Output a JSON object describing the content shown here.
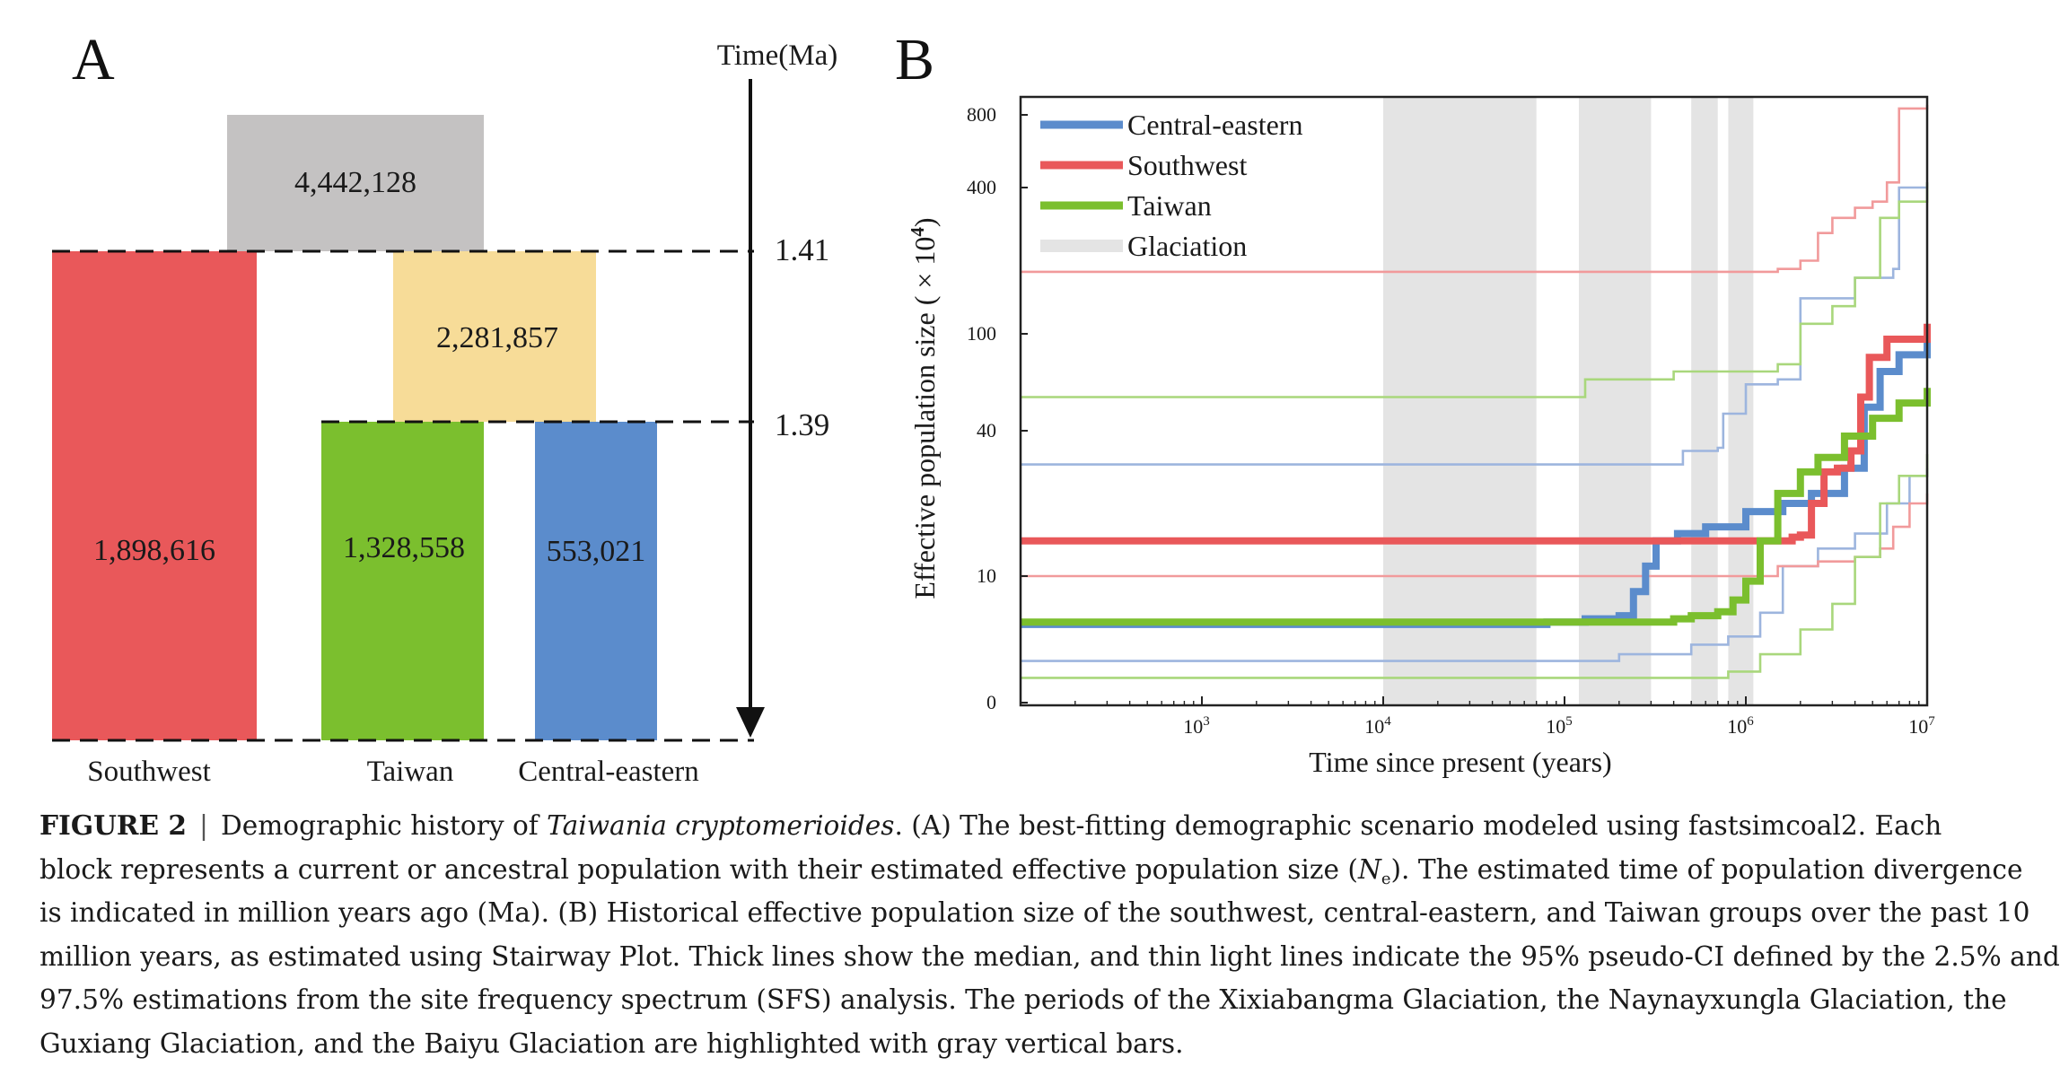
{
  "panel_a": {
    "label": "A",
    "time_label": "Time(Ma)",
    "time_ticks": [
      "1.41",
      "1.39"
    ],
    "blocks": [
      {
        "id": "ancestral-root",
        "value": "4,442,128",
        "color": "#c4c2c2"
      },
      {
        "id": "ancestral-taiwan-ce",
        "value": "2,281,857",
        "color": "#f7dc98"
      },
      {
        "id": "southwest",
        "value": "1,898,616",
        "color": "#e9585a"
      },
      {
        "id": "taiwan",
        "value": "1,328,558",
        "color": "#7bbf2e"
      },
      {
        "id": "central-eastern",
        "value": "553,021",
        "color": "#5b8ccc"
      }
    ],
    "population_labels": [
      "Southwest",
      "Taiwan",
      "Central-eastern"
    ]
  },
  "panel_b": {
    "label": "B",
    "x_tick_base": "10",
    "x_tick_exponents": [
      "3",
      "4",
      "5",
      "6",
      "7"
    ],
    "y_tick_labels": [
      "800",
      "400",
      "100",
      "40",
      "10",
      "0"
    ],
    "y_label_prefix": "Effective population size ( × 10",
    "y_label_exp": "4",
    "y_label_suffix": ")",
    "x_label": "Time since present (years)"
  },
  "chart_data": {
    "type": "line",
    "x_scale": "log",
    "xlim": [
      100,
      10000000
    ],
    "xlabel": "Time since present (years)",
    "ylabel": "Effective population size ( × 10^4)",
    "y_scale": "log-like",
    "y_ticks": [
      0,
      10,
      40,
      100,
      400,
      800
    ],
    "legend": [
      "Central-eastern",
      "Southwest",
      "Taiwan",
      "Glaciation"
    ],
    "legend_position": "top-left",
    "glaciations": [
      [
        10000,
        70000
      ],
      [
        120000,
        300000
      ],
      [
        500000,
        700000
      ],
      [
        800000,
        1100000
      ]
    ],
    "colors": {
      "Central-eastern": "#5b8ccc",
      "Southwest": "#e9585a",
      "Taiwan": "#7bbf2e",
      "Glaciation": "#e4e4e4"
    },
    "series": [
      {
        "name": "Central-eastern",
        "role": "median",
        "points": [
          [
            100,
            3.4
          ],
          [
            70000,
            3.4
          ],
          [
            80000,
            3.6
          ],
          [
            130000,
            3.9
          ],
          [
            200000,
            4.2
          ],
          [
            240000,
            7.2
          ],
          [
            280000,
            11
          ],
          [
            320000,
            14
          ],
          [
            420000,
            15
          ],
          [
            600000,
            16
          ],
          [
            1000000,
            18.5
          ],
          [
            1600000,
            20
          ],
          [
            2300000,
            22
          ],
          [
            3500000,
            28
          ],
          [
            4500000,
            50
          ],
          [
            5500000,
            70
          ],
          [
            7000000,
            82
          ],
          [
            10000000,
            95
          ]
        ]
      },
      {
        "name": "Central-eastern",
        "role": "ci-upper",
        "points": [
          [
            100,
            29
          ],
          [
            400000,
            29
          ],
          [
            450000,
            33
          ],
          [
            700000,
            34
          ],
          [
            750000,
            47
          ],
          [
            1000000,
            62
          ],
          [
            1500000,
            65
          ],
          [
            2000000,
            140
          ],
          [
            4000000,
            170
          ],
          [
            6500000,
            185
          ],
          [
            7000000,
            400
          ],
          [
            10000000,
            420
          ]
        ]
      },
      {
        "name": "Central-eastern",
        "role": "ci-lower",
        "points": [
          [
            100,
            1.2
          ],
          [
            100000,
            1.2
          ],
          [
            200000,
            1.5
          ],
          [
            500000,
            2.0
          ],
          [
            800000,
            2.5
          ],
          [
            1200000,
            4.5
          ],
          [
            1600000,
            11
          ],
          [
            2500000,
            13
          ],
          [
            4000000,
            15
          ],
          [
            6000000,
            20
          ],
          [
            8000000,
            26
          ],
          [
            10000000,
            28
          ]
        ]
      },
      {
        "name": "Southwest",
        "role": "median",
        "points": [
          [
            100,
            14
          ],
          [
            1000000,
            14
          ],
          [
            1800000,
            14.5
          ],
          [
            2000000,
            14.8
          ],
          [
            2300000,
            20
          ],
          [
            2700000,
            27
          ],
          [
            3200000,
            28
          ],
          [
            3800000,
            33
          ],
          [
            4300000,
            55
          ],
          [
            4800000,
            80
          ],
          [
            6000000,
            95
          ],
          [
            10000000,
            110
          ]
        ]
      },
      {
        "name": "Southwest",
        "role": "ci-upper",
        "points": [
          [
            100,
            180
          ],
          [
            1300000,
            180
          ],
          [
            1500000,
            185
          ],
          [
            2000000,
            200
          ],
          [
            2500000,
            260
          ],
          [
            3000000,
            300
          ],
          [
            4000000,
            330
          ],
          [
            5000000,
            350
          ],
          [
            6000000,
            420
          ],
          [
            7000000,
            850
          ],
          [
            10000000,
            880
          ]
        ]
      },
      {
        "name": "Southwest",
        "role": "ci-lower",
        "points": [
          [
            100,
            10
          ],
          [
            1000000,
            10
          ],
          [
            1500000,
            11
          ],
          [
            2500000,
            11.5
          ],
          [
            4000000,
            12
          ],
          [
            5500000,
            13
          ],
          [
            6500000,
            16
          ],
          [
            8000000,
            20
          ],
          [
            10000000,
            22
          ]
        ]
      },
      {
        "name": "Taiwan",
        "role": "median",
        "points": [
          [
            100,
            3.6
          ],
          [
            300000,
            3.6
          ],
          [
            400000,
            3.9
          ],
          [
            500000,
            4.2
          ],
          [
            700000,
            4.6
          ],
          [
            850000,
            6
          ],
          [
            1000000,
            9
          ],
          [
            1200000,
            14
          ],
          [
            1500000,
            22
          ],
          [
            2000000,
            27
          ],
          [
            2500000,
            31
          ],
          [
            3500000,
            38
          ],
          [
            5000000,
            45
          ],
          [
            7000000,
            52
          ],
          [
            10000000,
            60
          ]
        ]
      },
      {
        "name": "Taiwan",
        "role": "ci-upper",
        "points": [
          [
            100,
            55
          ],
          [
            120000,
            55
          ],
          [
            130000,
            65
          ],
          [
            400000,
            70
          ],
          [
            1500000,
            75
          ],
          [
            2000000,
            110
          ],
          [
            3000000,
            130
          ],
          [
            4000000,
            170
          ],
          [
            5500000,
            300
          ],
          [
            7000000,
            350
          ],
          [
            10000000,
            420
          ]
        ]
      },
      {
        "name": "Taiwan",
        "role": "ci-lower",
        "points": [
          [
            100,
            0.6
          ],
          [
            600000,
            0.6
          ],
          [
            800000,
            0.8
          ],
          [
            1200000,
            1.5
          ],
          [
            2000000,
            3.0
          ],
          [
            3000000,
            5.5
          ],
          [
            4000000,
            12
          ],
          [
            5500000,
            20
          ],
          [
            7000000,
            26
          ],
          [
            10000000,
            32
          ]
        ]
      }
    ]
  },
  "caption": {
    "fig_label": "FIGURE 2",
    "separator": "|",
    "l1_a": "Demographic history of ",
    "l1_species": "Taiwania cryptomerioides",
    "l1_b": ". (A) The best-fitting demographic scenario modeled using fastsimcoal2. Each",
    "l2_a": "block represents a current or ancestral population with their estimated effective population size (",
    "l2_ne": "N",
    "l2_sub": "e",
    "l2_b": "). The estimated time of population divergence",
    "l3": "is indicated in million years ago (Ma). (B) Historical effective population size of the southwest, central-eastern, and Taiwan groups over the past 10",
    "l4": "million years, as estimated using Stairway Plot. Thick lines show the median, and thin light lines indicate the 95% pseudo-CI defined by the 2.5% and",
    "l5": "97.5% estimations from the site frequency spectrum (SFS) analysis. The periods of the Xixiabangma Glaciation, the Naynayxungla Glaciation, the",
    "l6": "Guxiang Glaciation, and the Baiyu Glaciation are highlighted with gray vertical bars."
  }
}
